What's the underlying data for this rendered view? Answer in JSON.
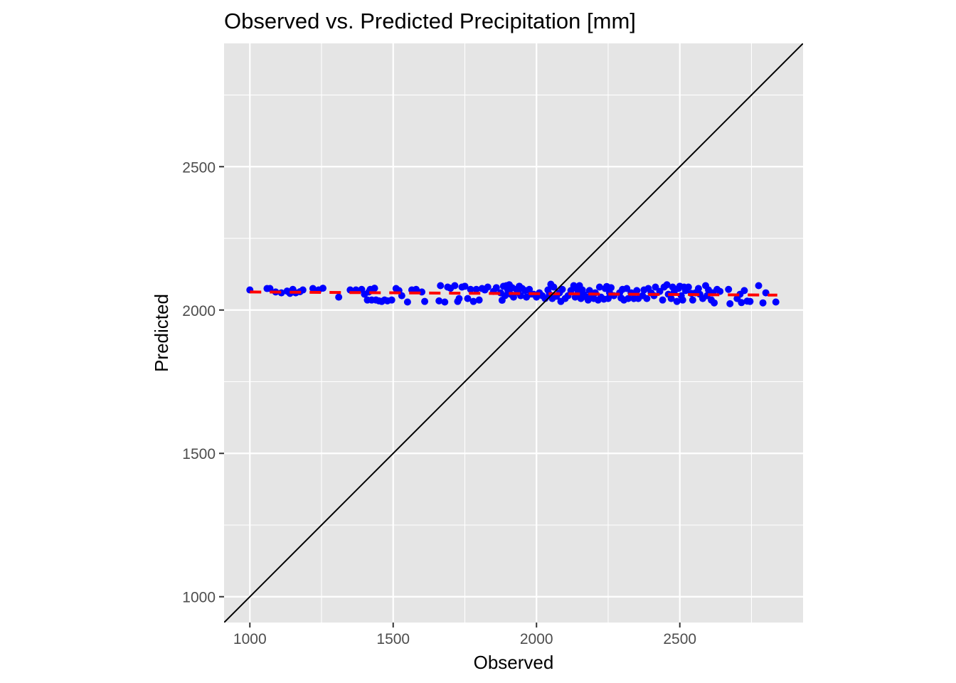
{
  "chart_data": {
    "type": "scatter",
    "title": "Observed vs. Predicted Precipitation [mm]",
    "xlabel": "Observed",
    "ylabel": "Predicted",
    "xlim": [
      910,
      2930
    ],
    "ylim": [
      910,
      2930
    ],
    "x_ticks": [
      1000,
      1500,
      2000,
      2500
    ],
    "x_tick_labels": [
      "1000",
      "1500",
      "2000",
      "2500"
    ],
    "y_ticks": [
      1000,
      1500,
      2000,
      2500
    ],
    "y_tick_labels": [
      "1000",
      "1500",
      "2000",
      "2500"
    ],
    "grid": true,
    "legend": "none",
    "colors": {
      "panel": "#e5e5e5",
      "grid": "#ffffff",
      "points": "#0000ff",
      "fit_line": "#ff0000",
      "identity_line": "#000000"
    },
    "series": [
      {
        "type": "scatter",
        "points": [
          [
            1000,
            2070
          ],
          [
            1060,
            2075
          ],
          [
            1070,
            2075
          ],
          [
            1090,
            2063
          ],
          [
            1110,
            2060
          ],
          [
            1130,
            2066
          ],
          [
            1140,
            2058
          ],
          [
            1150,
            2072
          ],
          [
            1160,
            2060
          ],
          [
            1175,
            2064
          ],
          [
            1185,
            2070
          ],
          [
            1220,
            2075
          ],
          [
            1240,
            2070
          ],
          [
            1255,
            2076
          ],
          [
            1310,
            2045
          ],
          [
            1350,
            2070
          ],
          [
            1370,
            2070
          ],
          [
            1390,
            2072
          ],
          [
            1400,
            2055
          ],
          [
            1410,
            2035
          ],
          [
            1415,
            2063
          ],
          [
            1420,
            2072
          ],
          [
            1425,
            2035
          ],
          [
            1435,
            2076
          ],
          [
            1440,
            2035
          ],
          [
            1450,
            2032
          ],
          [
            1460,
            2030
          ],
          [
            1470,
            2035
          ],
          [
            1480,
            2032
          ],
          [
            1495,
            2035
          ],
          [
            1510,
            2075
          ],
          [
            1520,
            2068
          ],
          [
            1530,
            2050
          ],
          [
            1550,
            2028
          ],
          [
            1565,
            2070
          ],
          [
            1580,
            2072
          ],
          [
            1600,
            2063
          ],
          [
            1610,
            2030
          ],
          [
            1660,
            2032
          ],
          [
            1665,
            2085
          ],
          [
            1680,
            2028
          ],
          [
            1690,
            2080
          ],
          [
            1700,
            2076
          ],
          [
            1715,
            2085
          ],
          [
            1725,
            2030
          ],
          [
            1730,
            2040
          ],
          [
            1740,
            2080
          ],
          [
            1750,
            2083
          ],
          [
            1760,
            2040
          ],
          [
            1770,
            2072
          ],
          [
            1780,
            2030
          ],
          [
            1790,
            2072
          ],
          [
            1800,
            2035
          ],
          [
            1810,
            2075
          ],
          [
            1820,
            2070
          ],
          [
            1830,
            2080
          ],
          [
            1850,
            2065
          ],
          [
            1860,
            2078
          ],
          [
            1875,
            2060
          ],
          [
            1880,
            2034
          ],
          [
            1885,
            2083
          ],
          [
            1890,
            2050
          ],
          [
            1895,
            2085
          ],
          [
            1900,
            2070
          ],
          [
            1905,
            2088
          ],
          [
            1910,
            2055
          ],
          [
            1915,
            2078
          ],
          [
            1920,
            2045
          ],
          [
            1930,
            2072
          ],
          [
            1935,
            2062
          ],
          [
            1940,
            2083
          ],
          [
            1945,
            2050
          ],
          [
            1950,
            2075
          ],
          [
            1960,
            2068
          ],
          [
            1965,
            2045
          ],
          [
            1975,
            2072
          ],
          [
            1980,
            2056
          ],
          [
            1990,
            2055
          ],
          [
            2000,
            2045
          ],
          [
            2010,
            2060
          ],
          [
            2020,
            2050
          ],
          [
            2030,
            2040
          ],
          [
            2040,
            2070
          ],
          [
            2045,
            2055
          ],
          [
            2050,
            2090
          ],
          [
            2055,
            2040
          ],
          [
            2060,
            2080
          ],
          [
            2070,
            2048
          ],
          [
            2080,
            2060
          ],
          [
            2085,
            2030
          ],
          [
            2090,
            2072
          ],
          [
            2100,
            2040
          ],
          [
            2110,
            2050
          ],
          [
            2120,
            2068
          ],
          [
            2130,
            2085
          ],
          [
            2135,
            2045
          ],
          [
            2140,
            2075
          ],
          [
            2145,
            2060
          ],
          [
            2150,
            2085
          ],
          [
            2155,
            2040
          ],
          [
            2160,
            2070
          ],
          [
            2165,
            2055
          ],
          [
            2175,
            2045
          ],
          [
            2180,
            2035
          ],
          [
            2185,
            2068
          ],
          [
            2190,
            2050
          ],
          [
            2200,
            2040
          ],
          [
            2205,
            2060
          ],
          [
            2215,
            2035
          ],
          [
            2220,
            2080
          ],
          [
            2225,
            2045
          ],
          [
            2235,
            2038
          ],
          [
            2240,
            2075
          ],
          [
            2245,
            2082
          ],
          [
            2250,
            2040
          ],
          [
            2255,
            2060
          ],
          [
            2260,
            2078
          ],
          [
            2270,
            2050
          ],
          [
            2290,
            2060
          ],
          [
            2295,
            2042
          ],
          [
            2300,
            2072
          ],
          [
            2305,
            2035
          ],
          [
            2315,
            2075
          ],
          [
            2320,
            2040
          ],
          [
            2330,
            2060
          ],
          [
            2340,
            2040
          ],
          [
            2350,
            2068
          ],
          [
            2355,
            2040
          ],
          [
            2370,
            2050
          ],
          [
            2375,
            2070
          ],
          [
            2385,
            2040
          ],
          [
            2390,
            2075
          ],
          [
            2400,
            2060
          ],
          [
            2410,
            2050
          ],
          [
            2415,
            2080
          ],
          [
            2430,
            2065
          ],
          [
            2440,
            2035
          ],
          [
            2445,
            2080
          ],
          [
            2455,
            2088
          ],
          [
            2460,
            2055
          ],
          [
            2470,
            2040
          ],
          [
            2475,
            2080
          ],
          [
            2480,
            2062
          ],
          [
            2490,
            2030
          ],
          [
            2495,
            2075
          ],
          [
            2500,
            2083
          ],
          [
            2505,
            2050
          ],
          [
            2510,
            2035
          ],
          [
            2515,
            2080
          ],
          [
            2520,
            2068
          ],
          [
            2530,
            2080
          ],
          [
            2540,
            2058
          ],
          [
            2545,
            2035
          ],
          [
            2555,
            2060
          ],
          [
            2565,
            2075
          ],
          [
            2570,
            2055
          ],
          [
            2580,
            2040
          ],
          [
            2590,
            2085
          ],
          [
            2595,
            2050
          ],
          [
            2600,
            2070
          ],
          [
            2610,
            2035
          ],
          [
            2615,
            2060
          ],
          [
            2620,
            2025
          ],
          [
            2630,
            2072
          ],
          [
            2640,
            2065
          ],
          [
            2670,
            2072
          ],
          [
            2675,
            2022
          ],
          [
            2700,
            2040
          ],
          [
            2710,
            2055
          ],
          [
            2715,
            2026
          ],
          [
            2725,
            2068
          ],
          [
            2735,
            2031
          ],
          [
            2745,
            2030
          ],
          [
            2775,
            2085
          ],
          [
            2790,
            2025
          ],
          [
            2800,
            2060
          ],
          [
            2835,
            2028
          ]
        ]
      },
      {
        "type": "line",
        "style": "dashed",
        "x": [
          1000,
          2840
        ],
        "y": [
          2063,
          2052
        ]
      },
      {
        "type": "line",
        "style": "solid",
        "x": [
          910,
          2930
        ],
        "y": [
          910,
          2930
        ]
      }
    ]
  }
}
